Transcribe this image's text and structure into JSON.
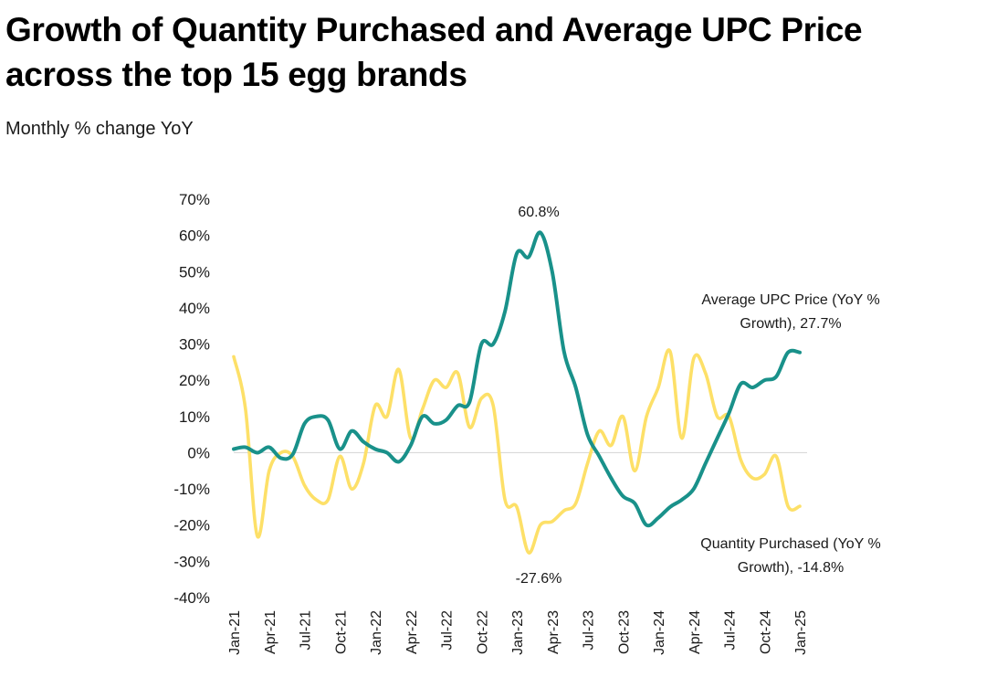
{
  "title_line1": "Growth of Quantity Purchased and Average UPC Price",
  "title_line2": "across the top 15 egg brands",
  "subtitle": "Monthly % change YoY",
  "colors": {
    "price": "#19918a",
    "quantity": "#fde068",
    "zero_line": "#d9d9d9"
  },
  "chart_data": {
    "type": "line",
    "x": [
      "Jan-21",
      "Feb-21",
      "Mar-21",
      "Apr-21",
      "May-21",
      "Jun-21",
      "Jul-21",
      "Aug-21",
      "Sep-21",
      "Oct-21",
      "Nov-21",
      "Dec-21",
      "Jan-22",
      "Feb-22",
      "Mar-22",
      "Apr-22",
      "May-22",
      "Jun-22",
      "Jul-22",
      "Aug-22",
      "Sep-22",
      "Oct-22",
      "Nov-22",
      "Dec-22",
      "Jan-23",
      "Feb-23",
      "Mar-23",
      "Apr-23",
      "May-23",
      "Jun-23",
      "Jul-23",
      "Aug-23",
      "Sep-23",
      "Oct-23",
      "Nov-23",
      "Dec-23",
      "Jan-24",
      "Feb-24",
      "Mar-24",
      "Apr-24",
      "May-24",
      "Jun-24",
      "Jul-24",
      "Aug-24",
      "Sep-24",
      "Oct-24",
      "Nov-24",
      "Dec-24",
      "Jan-25"
    ],
    "x_tick_labels": [
      "Jan-21",
      "Apr-21",
      "Jul-21",
      "Oct-21",
      "Jan-22",
      "Apr-22",
      "Jul-22",
      "Oct-22",
      "Jan-23",
      "Apr-23",
      "Jul-23",
      "Oct-23",
      "Jan-24",
      "Apr-24",
      "Jul-24",
      "Oct-24",
      "Jan-25"
    ],
    "y_tick_labels": [
      "70%",
      "60%",
      "50%",
      "40%",
      "30%",
      "20%",
      "10%",
      "0%",
      "-10%",
      "-20%",
      "-30%",
      "-40%"
    ],
    "ylim": [
      -40,
      70
    ],
    "series": [
      {
        "name": "Quantity Purchased (YoY % Growth)",
        "color": "#fde068",
        "values": [
          26.5,
          12,
          -23,
          -5,
          0,
          -1,
          -9,
          -13,
          -13,
          -1,
          -10,
          -3,
          13,
          10,
          23,
          4,
          12,
          20,
          18,
          22,
          7,
          15,
          13,
          -13,
          -15,
          -27.6,
          -20,
          -19,
          -16,
          -14,
          -3,
          6,
          2,
          10,
          -5,
          10,
          18,
          28,
          4,
          26,
          22,
          10,
          10,
          -2,
          -7,
          -6,
          -1,
          -14.8,
          -14.8
        ]
      },
      {
        "name": "Average UPC Price (YoY % Growth)",
        "color": "#19918a",
        "values": [
          1,
          1.5,
          0,
          1.5,
          -1.5,
          -0.5,
          8,
          10,
          9,
          1,
          6,
          3,
          1,
          0,
          -2.5,
          2,
          10,
          8,
          9,
          13,
          14,
          30,
          30,
          39,
          55,
          54,
          60.8,
          50,
          28,
          18,
          5,
          -1,
          -7,
          -12,
          -14,
          -20,
          -18,
          -15,
          -13,
          -10,
          -3,
          4,
          11,
          19,
          18,
          20,
          21,
          27.7,
          27.7
        ]
      }
    ],
    "annotations": {
      "peak": "60.8%",
      "trough": "-27.6%",
      "price_label_line1": "Average UPC Price (YoY %",
      "price_label_line2": "Growth), 27.7%",
      "qty_label_line1": "Quantity Purchased (YoY %",
      "qty_label_line2": "Growth), -14.8%"
    }
  }
}
